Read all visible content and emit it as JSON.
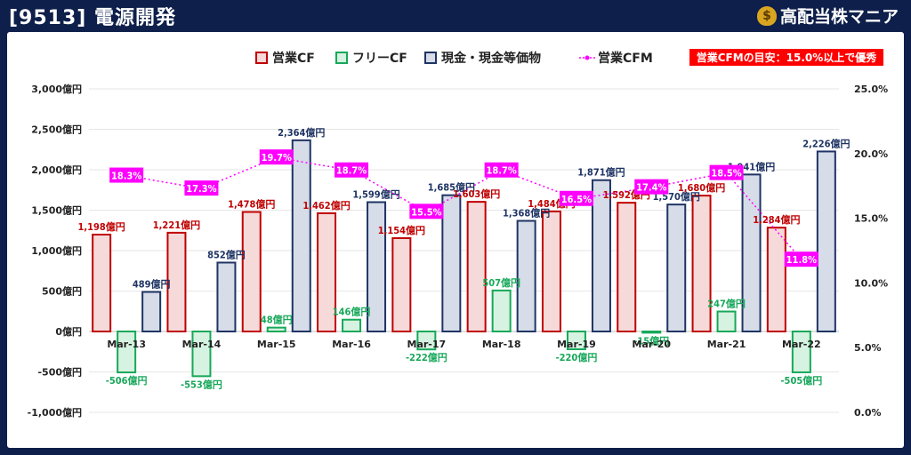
{
  "header": {
    "title": "[9513] 電源開発",
    "brand": "高配当株マニア",
    "brand_icon": "money-bag-icon"
  },
  "note": "営業CFMの目安：15.0%以上で優秀",
  "colors": {
    "operating_cf": "#c00000",
    "operating_cf_fill": "#f6dada",
    "free_cf": "#18a85a",
    "free_cf_fill": "#d6f2e0",
    "cash": "#1f3464",
    "cash_fill": "#d6dce8",
    "cfm": "#ff00ff",
    "background": "#0d1f4a"
  },
  "chart_data": {
    "type": "bar",
    "categories": [
      "Mar-13",
      "Mar-14",
      "Mar-15",
      "Mar-16",
      "Mar-17",
      "Mar-18",
      "Mar-19",
      "Mar-20",
      "Mar-21",
      "Mar-22"
    ],
    "series": [
      {
        "name": "営業CF",
        "kind": "bar",
        "values": [
          1198,
          1221,
          1478,
          1462,
          1154,
          1603,
          1484,
          1592,
          1680,
          1284
        ],
        "labels": [
          "1,198億円",
          "1,221億円",
          "1,478億円",
          "1,462億円",
          "1,154億円",
          "1,603億円",
          "1,484億円",
          "1,592億円",
          "1,680億円",
          "1,284億円"
        ]
      },
      {
        "name": "フリーCF",
        "kind": "bar",
        "values": [
          -506,
          -553,
          48,
          146,
          -222,
          507,
          -220,
          -15,
          247,
          -505
        ],
        "labels": [
          "-506億円",
          "-553億円",
          "48億円",
          "146億円",
          "-222億円",
          "507億円",
          "-220億円",
          "-15億円",
          "247億円",
          "-505億円"
        ]
      },
      {
        "name": "現金・現金等価物",
        "kind": "bar",
        "values": [
          489,
          852,
          2364,
          1599,
          1685,
          1368,
          1871,
          1570,
          1941,
          2226
        ],
        "labels": [
          "489億円",
          "852億円",
          "2,364億円",
          "1,599億円",
          "1,685億円",
          "1,368億円",
          "1,871億円",
          "1,570億円",
          "1,941億円",
          "2,226億円"
        ]
      },
      {
        "name": "営業CFM",
        "kind": "line",
        "axis": "right",
        "values": [
          18.3,
          17.3,
          19.7,
          18.7,
          15.5,
          18.7,
          16.5,
          17.4,
          18.5,
          11.8
        ],
        "labels": [
          "18.3%",
          "17.3%",
          "19.7%",
          "18.7%",
          "15.5%",
          "18.7%",
          "16.5%",
          "17.4%",
          "18.5%",
          "11.8%"
        ]
      }
    ],
    "left_axis": {
      "ylim": [
        -1000,
        3000
      ],
      "ticks": [
        3000,
        2500,
        2000,
        1500,
        1000,
        500,
        0,
        -500,
        -1000
      ],
      "tick_labels": [
        "3,000億円",
        "2,500億円",
        "2,000億円",
        "1,500億円",
        "1,000億円",
        "500億円",
        "0億円",
        "-500億円",
        "-1,000億円"
      ]
    },
    "right_axis": {
      "ylim": [
        0,
        25
      ],
      "ticks": [
        25,
        20,
        15,
        10,
        5,
        0
      ],
      "tick_labels": [
        "25.0%",
        "20.0%",
        "15.0%",
        "10.0%",
        "5.0%",
        "0.0%"
      ]
    },
    "legend_position": "top-center",
    "grid": true
  }
}
